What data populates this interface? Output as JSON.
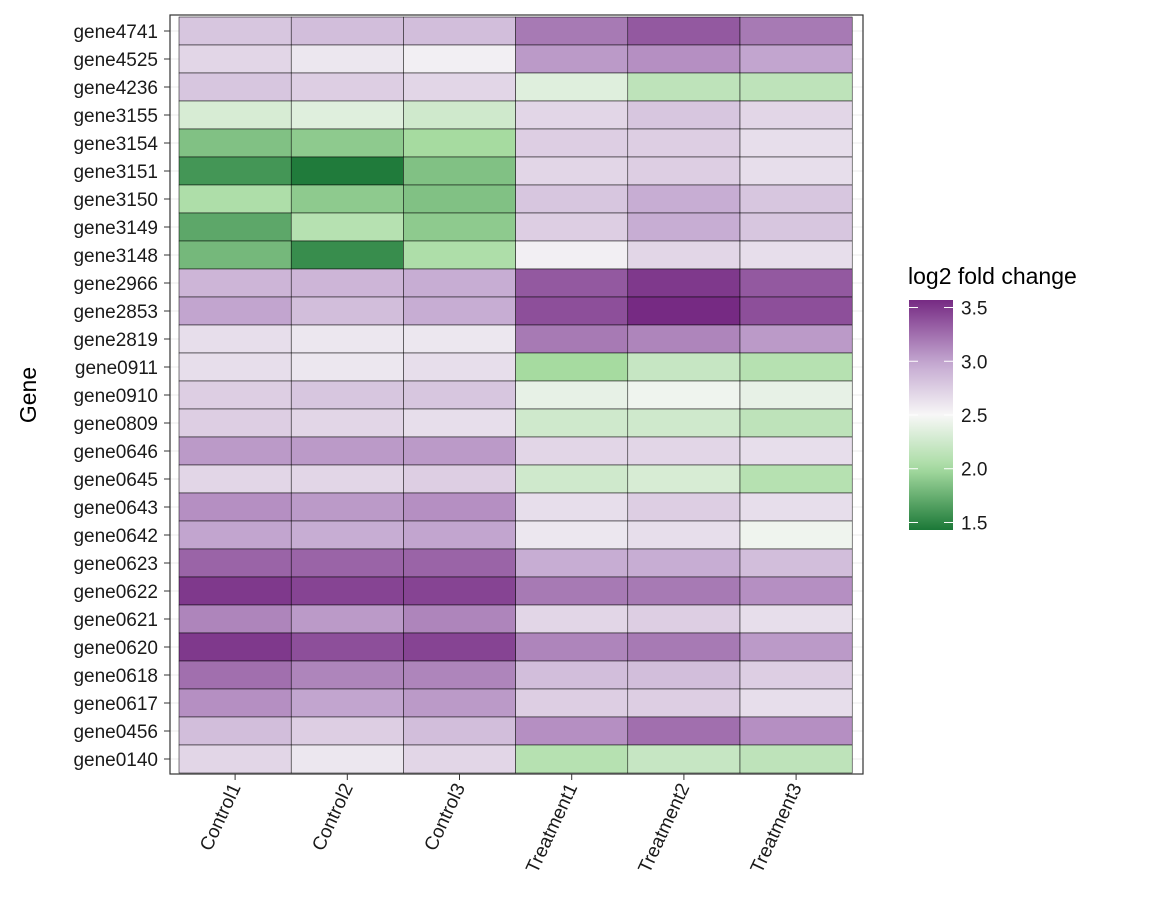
{
  "chart_data": {
    "type": "heatmap",
    "title": "",
    "xlabel": "",
    "ylabel": "Gene",
    "x": [
      "Control1",
      "Control2",
      "Control3",
      "Treatment1",
      "Treatment2",
      "Treatment3"
    ],
    "y": [
      "gene4741",
      "gene4525",
      "gene4236",
      "gene3155",
      "gene3154",
      "gene3151",
      "gene3150",
      "gene3149",
      "gene3148",
      "gene2966",
      "gene2853",
      "gene2819",
      "gene0911",
      "gene0910",
      "gene0809",
      "gene0646",
      "gene0645",
      "gene0643",
      "gene0642",
      "gene0623",
      "gene0622",
      "gene0621",
      "gene0620",
      "gene0618",
      "gene0617",
      "gene0456",
      "gene0140"
    ],
    "values": [
      [
        2.8,
        2.85,
        2.85,
        3.2,
        3.35,
        3.2
      ],
      [
        2.7,
        2.6,
        2.55,
        3.05,
        3.1,
        3.0
      ],
      [
        2.8,
        2.75,
        2.7,
        2.35,
        2.15,
        2.15
      ],
      [
        2.3,
        2.35,
        2.25,
        2.7,
        2.8,
        2.7
      ],
      [
        1.85,
        1.9,
        2.0,
        2.75,
        2.75,
        2.65
      ],
      [
        1.6,
        1.45,
        1.85,
        2.7,
        2.75,
        2.65
      ],
      [
        2.05,
        1.9,
        1.85,
        2.8,
        2.95,
        2.8
      ],
      [
        1.7,
        2.1,
        1.9,
        2.75,
        2.95,
        2.8
      ],
      [
        1.8,
        1.55,
        2.05,
        2.55,
        2.7,
        2.65
      ],
      [
        2.9,
        2.9,
        2.95,
        3.35,
        3.5,
        3.35
      ],
      [
        3.0,
        2.85,
        2.95,
        3.4,
        3.57,
        3.4
      ],
      [
        2.65,
        2.6,
        2.6,
        3.2,
        3.15,
        3.05
      ],
      [
        2.65,
        2.6,
        2.65,
        2.0,
        2.2,
        2.1
      ],
      [
        2.75,
        2.8,
        2.8,
        2.4,
        2.45,
        2.4
      ],
      [
        2.75,
        2.7,
        2.65,
        2.25,
        2.25,
        2.15
      ],
      [
        3.05,
        3.05,
        3.05,
        2.7,
        2.7,
        2.65
      ],
      [
        2.7,
        2.7,
        2.75,
        2.25,
        2.3,
        2.1
      ],
      [
        3.1,
        3.05,
        3.1,
        2.65,
        2.75,
        2.65
      ],
      [
        3.0,
        2.95,
        3.0,
        2.6,
        2.65,
        2.45
      ],
      [
        3.3,
        3.3,
        3.3,
        2.95,
        2.95,
        2.85
      ],
      [
        3.5,
        3.45,
        3.45,
        3.2,
        3.2,
        3.1
      ],
      [
        3.15,
        3.05,
        3.15,
        2.7,
        2.75,
        2.65
      ],
      [
        3.5,
        3.4,
        3.45,
        3.15,
        3.2,
        3.05
      ],
      [
        3.25,
        3.15,
        3.15,
        2.85,
        2.85,
        2.75
      ],
      [
        3.1,
        3.0,
        3.05,
        2.75,
        2.75,
        2.65
      ],
      [
        2.85,
        2.75,
        2.85,
        3.1,
        3.25,
        3.1
      ],
      [
        2.7,
        2.6,
        2.7,
        2.1,
        2.2,
        2.15
      ]
    ],
    "legend": {
      "title": "log2 fold change",
      "position": "right",
      "ticks": [
        "1.5",
        "2.0",
        "2.5",
        "3.0",
        "3.5"
      ],
      "range": [
        1.43,
        3.57
      ],
      "colors": [
        "#1b7837",
        "#a6dba0",
        "#f7f7f7",
        "#c2a5cf",
        "#762a83"
      ]
    },
    "grid": true
  }
}
